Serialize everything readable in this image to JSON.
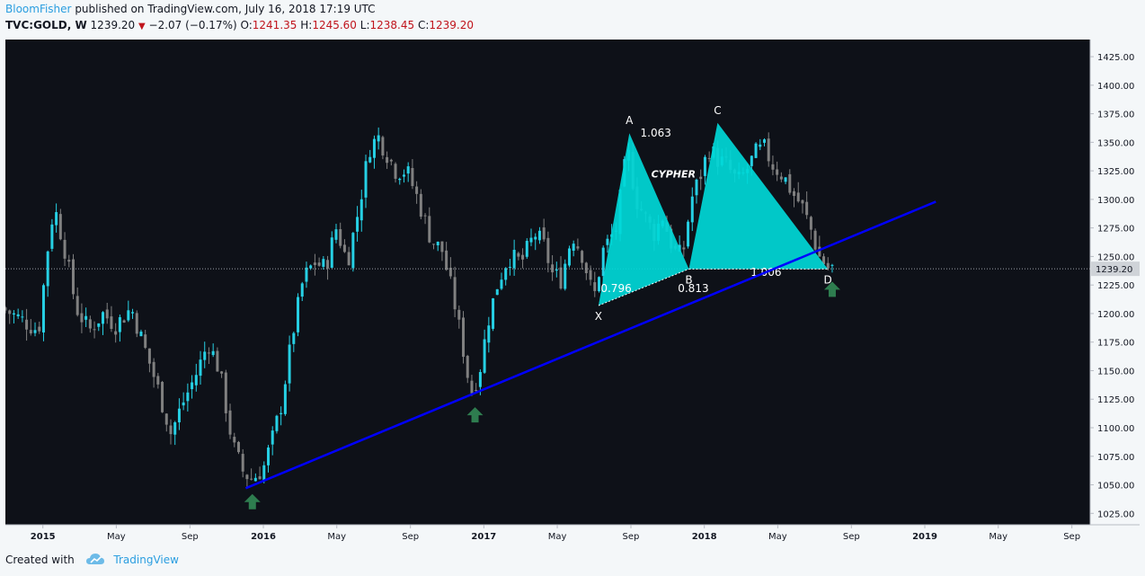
{
  "header": {
    "author": "BloomFisher",
    "published_text": "published on TradingView.com, July 16, 2018 17:19 UTC",
    "symbol": "TVC:GOLD, W",
    "last": "1239.20",
    "change": "−2.07 (−0.17%)",
    "open_label": "O:",
    "open": "1241.35",
    "high_label": "H:",
    "high": "1245.60",
    "low_label": "L:",
    "low": "1238.45",
    "close_label": "C:",
    "close": "1239.20",
    "change_arrow": "▼"
  },
  "colors": {
    "background": "#0e1118",
    "bull": "#26d0e4",
    "bear": "#808080",
    "pattern_fill": "#00d8d8",
    "trendline": "#0000ff",
    "arrow": "#2e7d4f",
    "price_badge": "#cfd3d8"
  },
  "chart_data": {
    "type": "candlestick",
    "ylim": [
      1015,
      1440
    ],
    "y_ticks": [
      1025,
      1050,
      1075,
      1100,
      1125,
      1150,
      1175,
      1200,
      1225,
      1250,
      1275,
      1300,
      1325,
      1350,
      1375,
      1400,
      1425
    ],
    "y_tick_labels": [
      "1025.00",
      "1050.00",
      "1075.00",
      "1100.00",
      "1125.00",
      "1150.00",
      "1175.00",
      "1200.00",
      "1225.00",
      "1250.00",
      "1275.00",
      "1300.00",
      "1325.00",
      "1350.00",
      "1375.00",
      "1400.00",
      "1425.00"
    ],
    "current_price": 1239.2,
    "current_price_label": "1239.20",
    "x_labels": [
      {
        "label": "2015",
        "t": 2015.0,
        "bold": true
      },
      {
        "label": "May",
        "t": 2015.333
      },
      {
        "label": "Sep",
        "t": 2015.667
      },
      {
        "label": "2016",
        "t": 2016.0,
        "bold": true
      },
      {
        "label": "May",
        "t": 2016.333
      },
      {
        "label": "Sep",
        "t": 2016.667
      },
      {
        "label": "2017",
        "t": 2017.0,
        "bold": true
      },
      {
        "label": "May",
        "t": 2017.333
      },
      {
        "label": "Sep",
        "t": 2017.667
      },
      {
        "label": "2018",
        "t": 2018.0,
        "bold": true
      },
      {
        "label": "May",
        "t": 2018.333
      },
      {
        "label": "Sep",
        "t": 2018.667
      },
      {
        "label": "2019",
        "t": 2019.0,
        "bold": true
      },
      {
        "label": "May",
        "t": 2019.333
      },
      {
        "label": "Sep",
        "t": 2019.667
      }
    ],
    "xlim": [
      2014.83,
      2019.75
    ],
    "price_path": [
      [
        2014.83,
        1205
      ],
      [
        2014.92,
        1195
      ],
      [
        2015.0,
        1185
      ],
      [
        2015.04,
        1255
      ],
      [
        2015.07,
        1295
      ],
      [
        2015.12,
        1255
      ],
      [
        2015.17,
        1205
      ],
      [
        2015.23,
        1185
      ],
      [
        2015.29,
        1200
      ],
      [
        2015.35,
        1190
      ],
      [
        2015.42,
        1205
      ],
      [
        2015.48,
        1170
      ],
      [
        2015.54,
        1135
      ],
      [
        2015.6,
        1095
      ],
      [
        2015.65,
        1120
      ],
      [
        2015.71,
        1145
      ],
      [
        2015.77,
        1175
      ],
      [
        2015.82,
        1150
      ],
      [
        2015.88,
        1085
      ],
      [
        2015.93,
        1060
      ],
      [
        2015.97,
        1055
      ],
      [
        2016.02,
        1065
      ],
      [
        2016.06,
        1090
      ],
      [
        2016.1,
        1120
      ],
      [
        2016.15,
        1180
      ],
      [
        2016.2,
        1230
      ],
      [
        2016.25,
        1245
      ],
      [
        2016.3,
        1240
      ],
      [
        2016.35,
        1275
      ],
      [
        2016.4,
        1245
      ],
      [
        2016.45,
        1290
      ],
      [
        2016.5,
        1345
      ],
      [
        2016.54,
        1355
      ],
      [
        2016.58,
        1340
      ],
      [
        2016.62,
        1325
      ],
      [
        2016.67,
        1325
      ],
      [
        2016.72,
        1300
      ],
      [
        2016.78,
        1265
      ],
      [
        2016.83,
        1255
      ],
      [
        2016.88,
        1215
      ],
      [
        2016.92,
        1175
      ],
      [
        2016.96,
        1130
      ],
      [
        2017.0,
        1150
      ],
      [
        2017.04,
        1195
      ],
      [
        2017.08,
        1225
      ],
      [
        2017.13,
        1250
      ],
      [
        2017.19,
        1245
      ],
      [
        2017.25,
        1270
      ],
      [
        2017.29,
        1260
      ],
      [
        2017.33,
        1235
      ],
      [
        2017.37,
        1230
      ],
      [
        2017.42,
        1270
      ],
      [
        2017.47,
        1250
      ],
      [
        2017.5,
        1225
      ],
      [
        2017.52,
        1215
      ],
      [
        2017.56,
        1255
      ],
      [
        2017.62,
        1275
      ],
      [
        2017.67,
        1345
      ],
      [
        2017.71,
        1300
      ],
      [
        2017.75,
        1285
      ],
      [
        2017.79,
        1270
      ],
      [
        2017.83,
        1285
      ],
      [
        2017.88,
        1255
      ],
      [
        2017.92,
        1250
      ],
      [
        2017.96,
        1300
      ],
      [
        2018.0,
        1320
      ],
      [
        2018.04,
        1345
      ],
      [
        2018.08,
        1335
      ],
      [
        2018.12,
        1330
      ],
      [
        2018.17,
        1315
      ],
      [
        2018.21,
        1325
      ],
      [
        2018.25,
        1340
      ],
      [
        2018.29,
        1345
      ],
      [
        2018.33,
        1330
      ],
      [
        2018.38,
        1320
      ],
      [
        2018.42,
        1305
      ],
      [
        2018.46,
        1295
      ],
      [
        2018.5,
        1275
      ],
      [
        2018.54,
        1250
      ],
      [
        2018.58,
        1240
      ]
    ],
    "trendline": {
      "start": [
        2015.92,
        1047
      ],
      "end": [
        2019.05,
        1298
      ]
    },
    "pattern": {
      "name": "CYPHER",
      "points": {
        "X": [
          2017.52,
          1207
        ],
        "A": [
          2017.66,
          1358
        ],
        "B": [
          2017.93,
          1239
        ],
        "C": [
          2018.06,
          1367
        ],
        "D": [
          2018.56,
          1239
        ]
      },
      "ratios": [
        {
          "label": "0.796",
          "t": 2017.6,
          "p": 1219
        },
        {
          "label": "0.813",
          "t": 2017.95,
          "p": 1219
        },
        {
          "label": "1.063",
          "t": 2017.78,
          "p": 1355
        },
        {
          "label": "1.006",
          "t": 2018.28,
          "p": 1233
        }
      ]
    },
    "arrows": [
      {
        "t": 2015.95,
        "p": 1042
      },
      {
        "t": 2016.96,
        "p": 1118
      },
      {
        "t": 2018.58,
        "p": 1228
      }
    ]
  },
  "footer": {
    "created_with": "Created with",
    "brand": "TradingView"
  }
}
